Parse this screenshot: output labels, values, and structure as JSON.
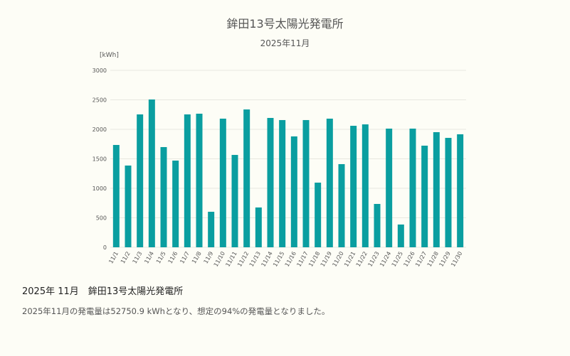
{
  "chart_data": {
    "type": "bar",
    "title": "鉾田13号太陽光発電所",
    "subtitle": "2025年11月",
    "ylabel": "[kWh]",
    "xlabel": "",
    "ylim": [
      0,
      3000
    ],
    "yticks": [
      0,
      500,
      1000,
      1500,
      2000,
      2500,
      3000
    ],
    "grid": true,
    "color": "#0a9ea0",
    "categories": [
      "11/1",
      "11/2",
      "11/3",
      "11/4",
      "11/5",
      "11/6",
      "11/7",
      "11/8",
      "11/9",
      "11/10",
      "11/11",
      "11/12",
      "11/13",
      "11/14",
      "11/15",
      "11/16",
      "11/17",
      "11/18",
      "11/19",
      "11/20",
      "11/21",
      "11/22",
      "11/23",
      "11/24",
      "11/25",
      "11/26",
      "11/27",
      "11/28",
      "11/29",
      "11/30"
    ],
    "values": [
      1735,
      1386,
      2253,
      2506,
      1699,
      1470,
      2253,
      2265,
      602,
      2181,
      1566,
      2337,
      675,
      2193,
      2157,
      1880,
      2157,
      1096,
      2181,
      1410,
      2060,
      2084,
      735,
      2012,
      386,
      2012,
      1723,
      1952,
      1855,
      1916
    ]
  },
  "summary": {
    "title": "2025年 11月　鉾田13号太陽光発電所",
    "text": "2025年11月の発電量は52750.9 kWhとなり、想定の94%の発電量となりました。"
  }
}
